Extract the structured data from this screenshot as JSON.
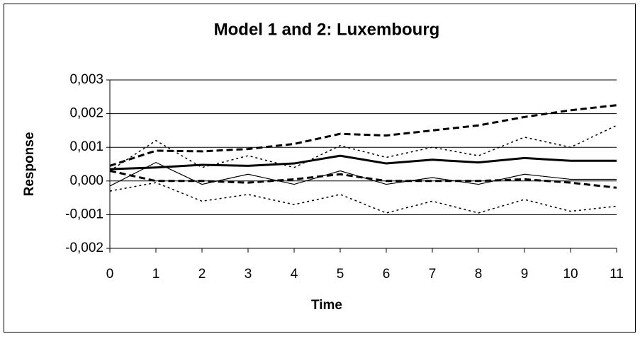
{
  "chart_data": {
    "type": "line",
    "title": "Model 1 and 2: Luxembourg",
    "x_label": "Time",
    "y_label": "Response",
    "x": [
      0,
      1,
      2,
      3,
      4,
      5,
      6,
      7,
      8,
      9,
      10,
      11
    ],
    "xlim": [
      0,
      11
    ],
    "xticks": [
      0,
      1,
      2,
      3,
      4,
      5,
      6,
      7,
      8,
      9,
      10,
      11
    ],
    "ylim": [
      -0.002,
      0.003
    ],
    "yticks": [
      {
        "value": -0.002,
        "label": "-0,002"
      },
      {
        "value": -0.001,
        "label": "-0,001"
      },
      {
        "value": 0,
        "label": "0,000"
      },
      {
        "value": 0.001,
        "label": "0,001"
      },
      {
        "value": 0.002,
        "label": "0,002"
      },
      {
        "value": 0.003,
        "label": "0,003"
      }
    ],
    "grid": true,
    "series": [
      {
        "color": "#000000",
        "style": "solid",
        "width": 3,
        "values": [
          0.00035,
          0.0004,
          0.00048,
          0.00045,
          0.00052,
          0.00075,
          0.00052,
          0.00063,
          0.00055,
          0.00068,
          0.0006,
          0.0006
        ]
      },
      {
        "color": "#000000",
        "style": "solid",
        "width": 1.2,
        "values": [
          -0.00015,
          0.00055,
          -0.0001,
          0.0002,
          -0.0001,
          0.0003,
          -0.0001,
          0.0001,
          -0.0001,
          0.0002,
          5e-05,
          5e-05
        ]
      },
      {
        "color": "#000000",
        "style": "dashed",
        "width": 3,
        "values": [
          0.00045,
          0.0009,
          0.00088,
          0.00095,
          0.0011,
          0.0014,
          0.00135,
          0.0015,
          0.00165,
          0.0019,
          0.0021,
          0.00225
        ]
      },
      {
        "color": "#000000",
        "style": "dashed",
        "width": 3,
        "values": [
          0.0003,
          0.0,
          0.0,
          -5e-05,
          5e-05,
          0.0002,
          0.0,
          0.0,
          0.0,
          5e-05,
          -5e-05,
          -0.0002
        ]
      },
      {
        "color": "#000000",
        "style": "dotted",
        "width": 1.5,
        "values": [
          0.0003,
          0.0012,
          0.0004,
          0.00075,
          0.0004,
          0.00105,
          0.0007,
          0.001,
          0.00075,
          0.0013,
          0.001,
          0.00165
        ]
      },
      {
        "color": "#000000",
        "style": "dotted",
        "width": 1.5,
        "values": [
          -0.0003,
          -5e-05,
          -0.0006,
          -0.0004,
          -0.0007,
          -0.0004,
          -0.00095,
          -0.0006,
          -0.00095,
          -0.00055,
          -0.0009,
          -0.00075
        ]
      }
    ]
  }
}
